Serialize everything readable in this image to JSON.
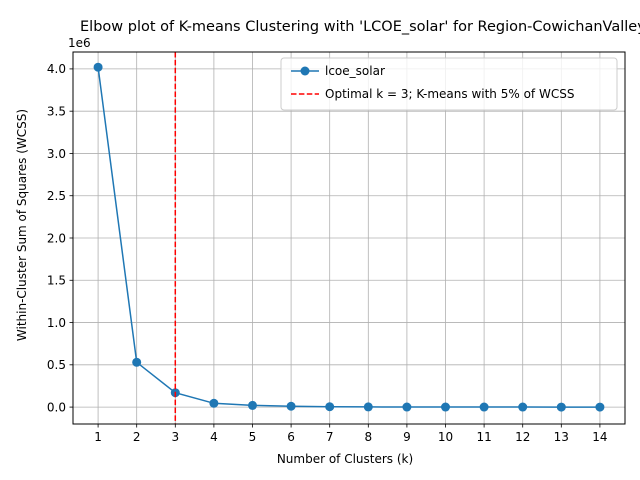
{
  "chart_data": {
    "type": "line",
    "title": "Elbow plot of K-means Clustering with 'LCOE_solar' for Region-CowichanValley",
    "xlabel": "Number of Clusters (k)",
    "ylabel": "Within-Cluster Sum of Squares (WCSS)",
    "y_offset_label": "1e6",
    "x": [
      1,
      2,
      3,
      4,
      5,
      6,
      7,
      8,
      9,
      10,
      11,
      12,
      13,
      14
    ],
    "xticks": [
      "1",
      "2",
      "3",
      "4",
      "5",
      "6",
      "7",
      "8",
      "9",
      "10",
      "11",
      "12",
      "13",
      "14"
    ],
    "yticks": [
      0,
      0.5,
      1.0,
      1.5,
      2.0,
      2.5,
      3.0,
      3.5,
      4.0
    ],
    "ytick_labels": [
      "0.0",
      "0.5",
      "1.0",
      "1.5",
      "2.0",
      "2.5",
      "3.0",
      "3.5",
      "4.0"
    ],
    "ylim": [
      -0.2,
      4.2
    ],
    "xlim": [
      0.35,
      14.65
    ],
    "grid": true,
    "legend_position": "top-right",
    "series": [
      {
        "name": "lcoe_solar",
        "color": "#1f77b4",
        "values": [
          4.02,
          0.53,
          0.17,
          0.045,
          0.02,
          0.01,
          0.004,
          0.002,
          0.001,
          0.001,
          0.0005,
          0.0005,
          0.0003,
          0.0002
        ]
      }
    ],
    "vline": {
      "x": 3,
      "color": "#ff0000",
      "label": "Optimal k = 3; K-means with 5% of WCSS"
    }
  }
}
